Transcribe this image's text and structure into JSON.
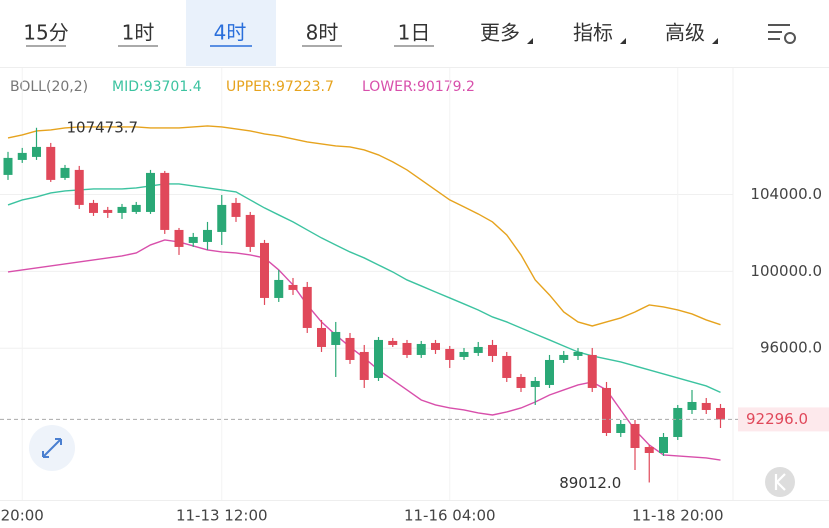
{
  "tabs": [
    "15分",
    "1时",
    "4时",
    "8时",
    "1日",
    "更多",
    "指标",
    "高级"
  ],
  "chart_data": {
    "type": "candlestick",
    "indicator": "BOLL(20,2)",
    "categories": [
      null,
      "20:00",
      null,
      null,
      null,
      null,
      null,
      null,
      null,
      null,
      null,
      null,
      null,
      null,
      null,
      "11-13 12:00",
      null,
      null,
      null,
      null,
      null,
      null,
      null,
      null,
      null,
      null,
      null,
      null,
      null,
      null,
      null,
      "11-16 04:00",
      null,
      null,
      null,
      null,
      null,
      null,
      null,
      null,
      null,
      null,
      null,
      null,
      null,
      null,
      null,
      "11-18 20:00",
      null,
      null,
      null
    ],
    "open": [
      105020,
      105800,
      105957,
      106477,
      104863,
      105280,
      103562,
      103197,
      103041,
      103093,
      103093,
      105124,
      102156,
      101479,
      101531,
      102052,
      103562,
      102937,
      101479,
      98616,
      99293,
      99189,
      97054,
      96169,
      96534,
      95805,
      94451,
      96378,
      96273,
      95649,
      96273,
      95961,
      95545,
      95753,
      96169,
      95597,
      94503,
      93983,
      94087,
      95388,
      95597,
      95649,
      93931,
      91588,
      92057,
      90859,
      90547,
      91380,
      92785,
      93150,
      92890
    ],
    "high": [
      106220,
      106425,
      107473.7,
      106685,
      105540,
      105488,
      103718,
      103354,
      103510,
      103614,
      105280,
      105228,
      102260,
      102000,
      102573,
      103978,
      103822,
      103093,
      101636,
      100074,
      99657,
      99449,
      97471,
      97367,
      96794,
      96169,
      96586,
      96534,
      96430,
      96378,
      96430,
      96117,
      96013,
      96325,
      96430,
      95805,
      94660,
      94503,
      95649,
      95857,
      96013,
      96013,
      94243,
      92265,
      92265,
      90963,
      91588,
      93046,
      93827,
      93410,
      93098
    ],
    "low": [
      104760,
      105644,
      105800,
      104655,
      104760,
      103249,
      102885,
      102781,
      102729,
      102989,
      102989,
      101948,
      100855,
      101271,
      101115,
      101375,
      102573,
      101011,
      98252,
      98408,
      98772,
      96794,
      95805,
      94503,
      95180,
      93931,
      94295,
      96065,
      95493,
      95493,
      95701,
      94972,
      95388,
      95597,
      95284,
      94243,
      93722,
      93046,
      93931,
      95232,
      95388,
      93722,
      91432,
      91380,
      89662,
      89012,
      90391,
      91224,
      92577,
      92577,
      91848
    ],
    "close": [
      105905,
      106165,
      106477,
      104760,
      105384,
      103458,
      103041,
      103041,
      103354,
      103458,
      105124,
      102156,
      101271,
      101792,
      102156,
      103458,
      102833,
      101271,
      98616,
      99553,
      99033,
      97054,
      96065,
      96846,
      95388,
      94347,
      96430,
      96169,
      95649,
      96221,
      95909,
      95388,
      95805,
      96065,
      95597,
      94451,
      93931,
      94295,
      95388,
      95649,
      95805,
      93931,
      91588,
      92057,
      90807,
      90547,
      91380,
      92890,
      93202,
      92785,
      92296
    ],
    "up_color": "#2aa876",
    "down_color": "#e0485a",
    "series": [
      {
        "name": "MID:93701.4",
        "color": "#3cc3a0",
        "values": [
          103458,
          103718,
          103874,
          104082,
          104187,
          104239,
          104291,
          104291,
          104291,
          104343,
          104447,
          104551,
          104551,
          104447,
          104343,
          104239,
          104134,
          103718,
          103302,
          102937,
          102573,
          102156,
          101740,
          101375,
          101011,
          100699,
          100334,
          99970,
          99553,
          99241,
          98928,
          98616,
          98304,
          97991,
          97627,
          97367,
          97054,
          96742,
          96430,
          96117,
          95805,
          95597,
          95440,
          95284,
          95076,
          94868,
          94660,
          94451,
          94243,
          94035,
          93701.4
        ]
      },
      {
        "name": "UPPER:97223.7",
        "color": "#e6a31e",
        "values": [
          106946,
          107102,
          107310,
          107362,
          107466,
          107518,
          107518,
          107518,
          107518,
          107518,
          107466,
          107466,
          107466,
          107518,
          107570,
          107518,
          107414,
          107310,
          107154,
          107050,
          106894,
          106737,
          106633,
          106529,
          106477,
          106321,
          106061,
          105696,
          105280,
          104760,
          104239,
          103718,
          103354,
          102989,
          102573,
          101896,
          100855,
          99553,
          98772,
          97887,
          97367,
          97158,
          97367,
          97575,
          97887,
          98252,
          98148,
          97991,
          97783,
          97471,
          97223.7
        ]
      },
      {
        "name": "LOWER:90179.2",
        "color": "#d84fab",
        "values": [
          99970,
          100074,
          100178,
          100282,
          100386,
          100490,
          100594,
          100699,
          100803,
          100959,
          101375,
          101636,
          101531,
          101323,
          101115,
          101011,
          100959,
          100855,
          100699,
          100074,
          99293,
          98252,
          97367,
          96690,
          96065,
          95493,
          94868,
          94347,
          93827,
          93306,
          93046,
          92890,
          92785,
          92629,
          92525,
          92681,
          92890,
          93202,
          93566,
          93827,
          94087,
          94243,
          93827,
          92785,
          91744,
          90963,
          90443,
          90391,
          90339,
          90287,
          90179.2
        ]
      }
    ],
    "ylim": [
      88100,
      109700
    ],
    "yticks": [
      {
        "value": 96000,
        "label": "96000.0"
      },
      {
        "value": 100000,
        "label": "100000.0"
      },
      {
        "value": 104000,
        "label": "104000.0"
      }
    ],
    "grid": true,
    "max_marker": {
      "value": 107473.7,
      "label": "107473.7"
    },
    "min_marker": {
      "value": 89012,
      "label": "89012.0"
    },
    "last_price": {
      "value": 92296,
      "label": "92296.0"
    }
  }
}
